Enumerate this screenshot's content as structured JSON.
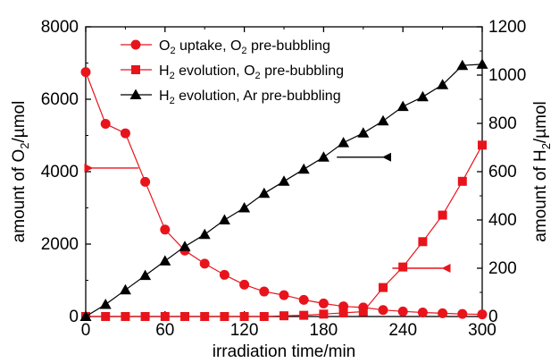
{
  "chart_data": {
    "type": "line",
    "x_ticks": [
      0,
      60,
      120,
      180,
      240,
      300
    ],
    "xlim": [
      0,
      300
    ],
    "xlabel": "irradiation time/min",
    "left_axis": {
      "ylim": [
        0,
        8000
      ],
      "ticks": [
        0,
        2000,
        4000,
        6000,
        8000
      ],
      "label_prefix": "amount of O",
      "label_sub": "2",
      "label_suffix": "/µmol"
    },
    "right_axis": {
      "ylim": [
        0,
        1200
      ],
      "ticks": [
        0,
        200,
        400,
        600,
        800,
        1000,
        1200
      ],
      "label_prefix": "amount of H",
      "label_sub": "2",
      "label_suffix": "/µmol"
    },
    "series": [
      {
        "name_main": "O",
        "name_sub": "2",
        "name_rest": " uptake, O",
        "name_sub2": "2",
        "name_end": " pre-bubbling",
        "axis": "left",
        "marker": "circle",
        "color": "#e8141c",
        "x": [
          0,
          15,
          30,
          45,
          60,
          75,
          90,
          105,
          120,
          135,
          150,
          165,
          180,
          195,
          210,
          225,
          240,
          255,
          270,
          285,
          300
        ],
        "y": [
          6750,
          5320,
          5060,
          3720,
          2400,
          1820,
          1460,
          1150,
          880,
          690,
          590,
          460,
          360,
          280,
          250,
          180,
          140,
          110,
          90,
          70,
          60
        ]
      },
      {
        "name_main": "H",
        "name_sub": "2",
        "name_rest": " evolution, O",
        "name_sub2": "2",
        "name_end": " pre-bubbling",
        "axis": "right",
        "marker": "square",
        "color": "#e8141c",
        "x": [
          0,
          15,
          30,
          45,
          60,
          75,
          90,
          105,
          120,
          135,
          150,
          165,
          180,
          195,
          210,
          225,
          240,
          255,
          270,
          285,
          300
        ],
        "y": [
          0,
          0,
          0,
          0,
          0,
          0,
          0,
          0,
          0,
          0,
          3,
          5,
          10,
          15,
          20,
          120,
          205,
          310,
          420,
          560,
          710
        ]
      },
      {
        "name_main": "H",
        "name_sub": "2",
        "name_rest": " evolution, Ar pre-bubbling",
        "name_sub2": "",
        "name_end": "",
        "axis": "right",
        "marker": "triangle",
        "color": "#000000",
        "x": [
          0,
          15,
          30,
          45,
          60,
          75,
          90,
          105,
          120,
          135,
          150,
          165,
          180,
          195,
          210,
          225,
          240,
          255,
          270,
          285,
          300
        ],
        "y": [
          0,
          50,
          110,
          170,
          230,
          290,
          340,
          400,
          450,
          510,
          560,
          610,
          660,
          720,
          760,
          810,
          870,
          910,
          960,
          1040,
          1045
        ]
      }
    ],
    "annotations": [
      {
        "kind": "arrow",
        "color": "#e8141c",
        "x1": 40,
        "y1": 4100,
        "x2": 5,
        "y2": 4100,
        "axis": "left"
      },
      {
        "kind": "arrow",
        "color": "#000000",
        "x1": 190,
        "y1": 660,
        "x2": 225,
        "y2": 660,
        "axis": "right"
      },
      {
        "kind": "arrow",
        "color": "#e8141c",
        "x1": 232,
        "y1": 200,
        "x2": 270,
        "y2": 200,
        "axis": "right"
      }
    ],
    "legend_position": "top-left",
    "grid": false
  }
}
